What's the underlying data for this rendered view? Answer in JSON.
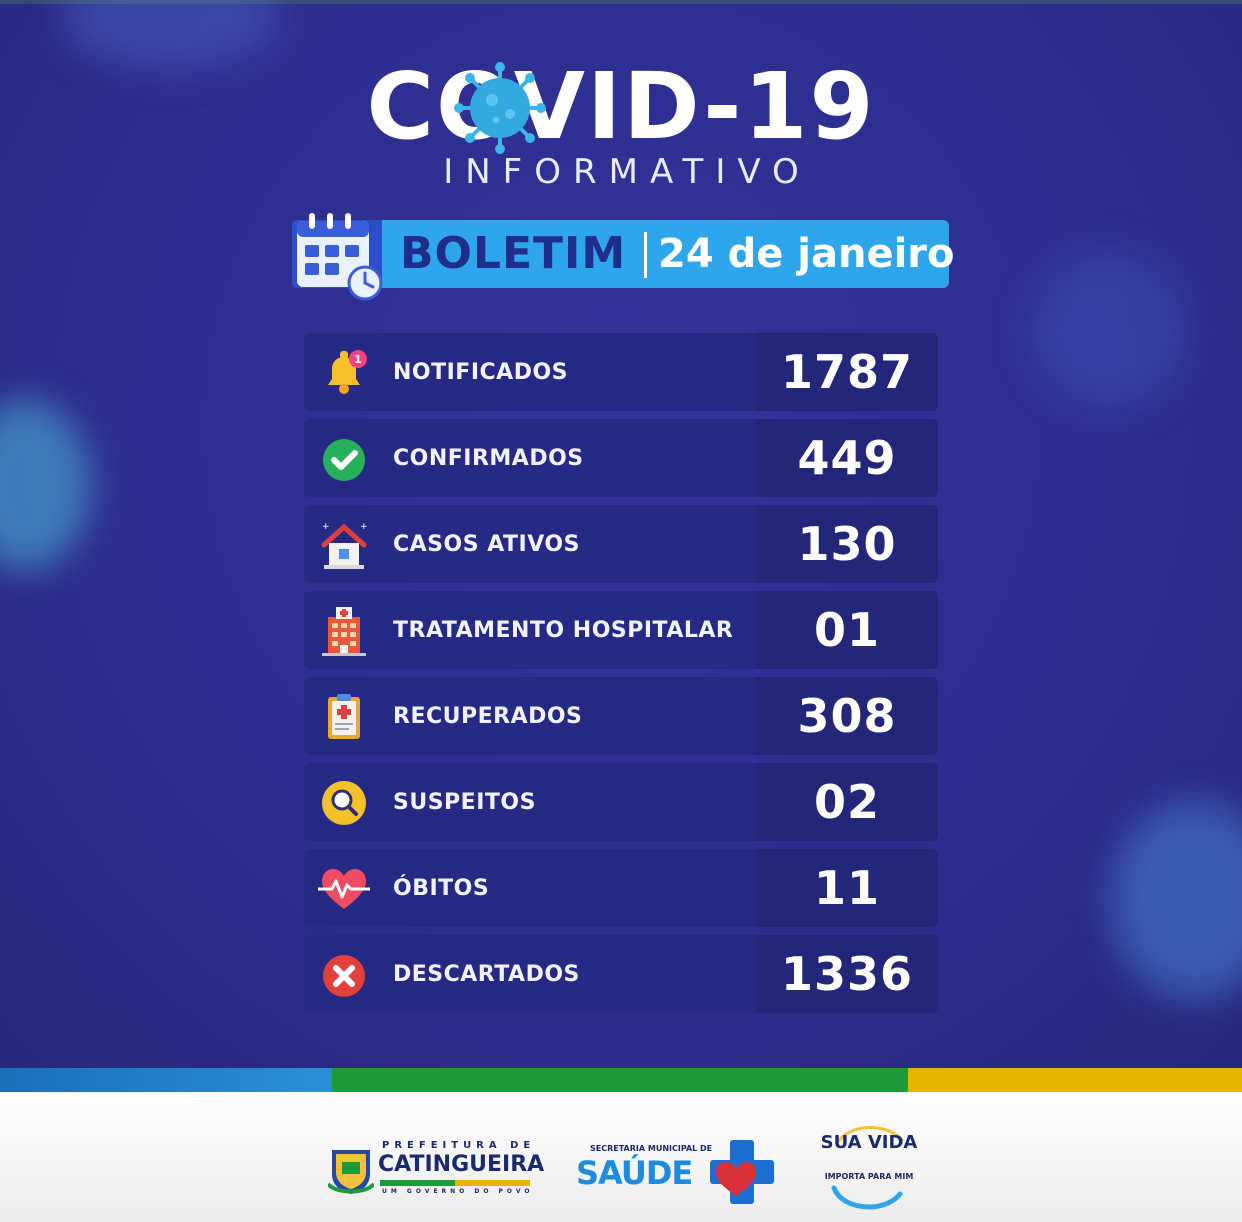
{
  "header": {
    "title": "COVID-19",
    "subtitle": "INFORMATIVO"
  },
  "banner": {
    "label": "BOLETIM",
    "date": "24 de janeiro"
  },
  "stats": [
    {
      "label": "NOTIFICADOS",
      "value": "1787",
      "icon": "bell-icon"
    },
    {
      "label": "CONFIRMADOS",
      "value": "449",
      "icon": "check-icon"
    },
    {
      "label": "CASOS ATIVOS",
      "value": "130",
      "icon": "house-icon"
    },
    {
      "label": "TRATAMENTO HOSPITALAR",
      "value": "01",
      "icon": "hospital-icon"
    },
    {
      "label": "RECUPERADOS",
      "value": "308",
      "icon": "clipboard-icon"
    },
    {
      "label": "SUSPEITOS",
      "value": "02",
      "icon": "magnifier-icon"
    },
    {
      "label": "ÓBITOS",
      "value": "11",
      "icon": "heartbeat-icon"
    },
    {
      "label": "DESCARTADOS",
      "value": "1336",
      "icon": "x-icon"
    }
  ],
  "footer": {
    "logo1_top": "PREFEITURA DE",
    "logo1_main": "CATINGUEIRA",
    "logo1_sub": "UM GOVERNO DO POVO",
    "logo2_top": "SECRETARIA MUNICIPAL DE",
    "logo2_main": "SAÚDE",
    "logo3_line1": "SUA VIDA",
    "logo3_line2": "IMPORTA PARA MIM"
  },
  "colors": {
    "background": "#2e2e8c",
    "banner": "#2fa6ec",
    "row": "#272a84"
  }
}
